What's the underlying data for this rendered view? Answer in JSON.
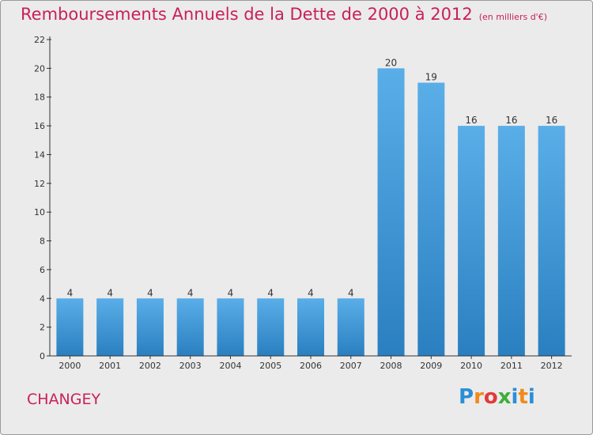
{
  "header": {
    "title": "Remboursements Annuels de la Dette de 2000 à 2012",
    "subtitle": "(en milliers d'€)"
  },
  "footer": {
    "commune": "CHANGEY",
    "logo_text": "Proxiti",
    "logo_letters": [
      {
        "ch": "P",
        "color": "#2a8fd6"
      },
      {
        "ch": "r",
        "color": "#f08a1a"
      },
      {
        "ch": "o",
        "color": "#e23a3a"
      },
      {
        "ch": "x",
        "color": "#3fae3a"
      },
      {
        "ch": "i",
        "color": "#2a8fd6"
      },
      {
        "ch": "t",
        "color": "#f08a1a"
      },
      {
        "ch": "i",
        "color": "#2a8fd6"
      }
    ]
  },
  "colors": {
    "title": "#c8205a",
    "bar_top": "#5aaee8",
    "bar_bottom": "#2a7fc0",
    "axis": "#333333"
  },
  "chart_data": {
    "type": "bar",
    "title": "Remboursements Annuels de la Dette de 2000 à 2012",
    "subtitle": "(en milliers d'€)",
    "categories": [
      "2000",
      "2001",
      "2002",
      "2003",
      "2004",
      "2005",
      "2006",
      "2007",
      "2008",
      "2009",
      "2010",
      "2011",
      "2012"
    ],
    "values": [
      4,
      4,
      4,
      4,
      4,
      4,
      4,
      4,
      20,
      19,
      16,
      16,
      16
    ],
    "ylim": [
      0,
      22
    ],
    "yticks": [
      0,
      2,
      4,
      6,
      8,
      10,
      12,
      14,
      16,
      18,
      20,
      22
    ],
    "grid": false,
    "legend": "none"
  }
}
